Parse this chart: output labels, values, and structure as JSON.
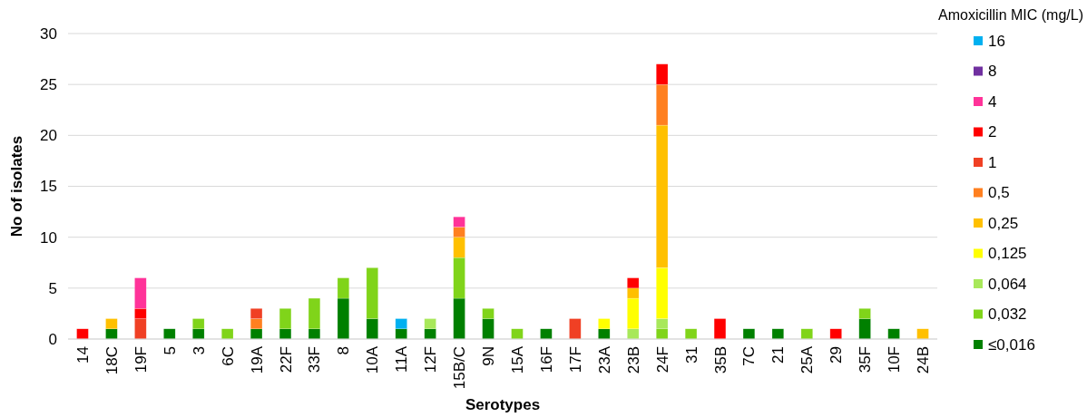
{
  "chart_data": {
    "type": "bar",
    "stacked": true,
    "xlabel": "Serotypes",
    "ylabel": "No of isolates",
    "legend_title": "Amoxicillin MIC (mg/L)",
    "legend": "right",
    "grid": "y",
    "categories": [
      "14",
      "18C",
      "19F",
      "5",
      "3",
      "6C",
      "19A",
      "22F",
      "33F",
      "8",
      "10A",
      "11A",
      "12F",
      "15B/C",
      "9N",
      "15A",
      "16F",
      "17F",
      "23A",
      "23B",
      "24F",
      "31",
      "35B",
      "7C",
      "21",
      "25A",
      "29",
      "35F",
      "10F",
      "24B"
    ],
    "ylim": [
      0,
      30
    ],
    "yticks": [
      0,
      5,
      10,
      15,
      20,
      25,
      30
    ],
    "series": [
      {
        "name": "≤0,016",
        "color": "#008000",
        "values": [
          null,
          1,
          null,
          1,
          1,
          null,
          1,
          1,
          1,
          4,
          2,
          1,
          1,
          4,
          2,
          null,
          1,
          null,
          1,
          null,
          null,
          null,
          null,
          1,
          1,
          null,
          null,
          2,
          1,
          null
        ]
      },
      {
        "name": "0,032",
        "color": "#80d41a",
        "values": [
          null,
          null,
          null,
          null,
          1,
          1,
          null,
          2,
          3,
          2,
          5,
          null,
          null,
          4,
          1,
          1,
          null,
          null,
          null,
          null,
          1,
          1,
          null,
          null,
          null,
          1,
          null,
          1,
          null,
          null
        ]
      },
      {
        "name": "0,064",
        "color": "#a8e85a",
        "values": [
          null,
          null,
          null,
          null,
          null,
          null,
          null,
          null,
          null,
          null,
          null,
          null,
          1,
          null,
          null,
          null,
          null,
          null,
          null,
          1,
          1,
          null,
          null,
          null,
          null,
          null,
          null,
          null,
          null,
          null
        ]
      },
      {
        "name": "0,125",
        "color": "#ffff00",
        "values": [
          null,
          null,
          null,
          null,
          null,
          null,
          null,
          null,
          null,
          null,
          null,
          null,
          null,
          null,
          null,
          null,
          null,
          null,
          1,
          3,
          5,
          null,
          null,
          null,
          null,
          null,
          null,
          null,
          null,
          null
        ]
      },
      {
        "name": "0,25",
        "color": "#ffc000",
        "values": [
          null,
          1,
          null,
          null,
          null,
          null,
          null,
          null,
          null,
          null,
          null,
          null,
          null,
          2,
          null,
          null,
          null,
          null,
          null,
          1,
          14,
          null,
          null,
          null,
          null,
          null,
          null,
          null,
          null,
          1
        ]
      },
      {
        "name": "0,5",
        "color": "#ff8020",
        "values": [
          null,
          null,
          null,
          null,
          null,
          null,
          1,
          null,
          null,
          null,
          null,
          null,
          null,
          1,
          null,
          null,
          null,
          null,
          null,
          null,
          4,
          null,
          null,
          null,
          null,
          null,
          null,
          null,
          null,
          null
        ]
      },
      {
        "name": "1",
        "color": "#f04024",
        "values": [
          null,
          null,
          2,
          null,
          null,
          null,
          1,
          null,
          null,
          null,
          null,
          null,
          null,
          null,
          null,
          null,
          null,
          2,
          null,
          null,
          null,
          null,
          null,
          null,
          null,
          null,
          null,
          null,
          null,
          null
        ]
      },
      {
        "name": "2",
        "color": "#ff0000",
        "values": [
          1,
          null,
          1,
          null,
          null,
          null,
          null,
          null,
          null,
          null,
          null,
          null,
          null,
          null,
          null,
          null,
          null,
          null,
          null,
          1,
          2,
          null,
          2,
          null,
          null,
          null,
          1,
          null,
          null,
          null
        ]
      },
      {
        "name": "4",
        "color": "#ff3399",
        "values": [
          null,
          null,
          3,
          null,
          null,
          null,
          null,
          null,
          null,
          null,
          null,
          null,
          null,
          1,
          null,
          null,
          null,
          null,
          null,
          null,
          null,
          null,
          null,
          null,
          null,
          null,
          null,
          null,
          null,
          null
        ]
      },
      {
        "name": "8",
        "color": "#7030a0",
        "values": [
          null,
          null,
          null,
          null,
          null,
          null,
          null,
          null,
          null,
          null,
          null,
          null,
          null,
          null,
          null,
          null,
          null,
          null,
          null,
          null,
          null,
          null,
          null,
          null,
          null,
          null,
          null,
          null,
          null,
          null
        ]
      },
      {
        "name": "16",
        "color": "#00b0f0",
        "values": [
          null,
          null,
          null,
          null,
          null,
          null,
          null,
          null,
          null,
          null,
          null,
          1,
          null,
          null,
          null,
          null,
          null,
          null,
          null,
          null,
          null,
          null,
          null,
          null,
          null,
          null,
          null,
          null,
          null,
          null
        ]
      }
    ]
  }
}
